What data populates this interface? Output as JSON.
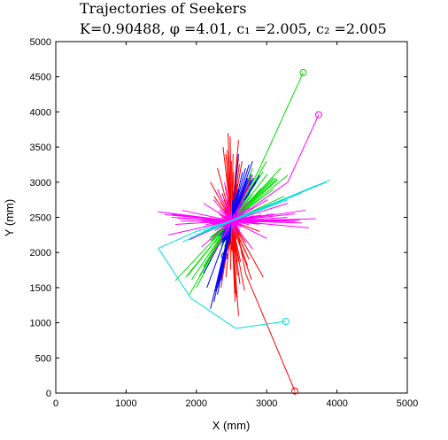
{
  "chart_data": {
    "type": "line",
    "title": "Trajectories of Seekers",
    "subtitle": "K=0.90488, φ =4.01, c₁ =2.005, c₂ =2.005",
    "xlabel": "X (mm)",
    "ylabel": "Y (mm)",
    "xlim": [
      0,
      5000
    ],
    "ylim": [
      0,
      5000
    ],
    "xticks": [
      "0",
      "1000",
      "2000",
      "3000",
      "4000",
      "5000"
    ],
    "yticks": [
      "0",
      "500",
      "1000",
      "1500",
      "2000",
      "2500",
      "3000",
      "3500",
      "4000",
      "4500",
      "5000"
    ],
    "grid": false,
    "legend": "none",
    "center": [
      2500,
      2450
    ],
    "series": [
      {
        "color": "#ff0000",
        "start": [
          3400,
          30
        ],
        "path": [
          [
            3400,
            30
          ],
          [
            2700,
            1700
          ],
          [
            2550,
            2500
          ],
          [
            2500,
            2450
          ]
        ],
        "swarm": [
          [
            2450,
            3700
          ],
          [
            2380,
            3500
          ],
          [
            2600,
            3600
          ],
          [
            2650,
            3300
          ],
          [
            2300,
            3200
          ],
          [
            2700,
            2000
          ],
          [
            2550,
            1300
          ],
          [
            2600,
            1100
          ],
          [
            2950,
            1650
          ],
          [
            2400,
            1800
          ],
          [
            2200,
            3000
          ],
          [
            2800,
            3100
          ],
          [
            2350,
            1500
          ],
          [
            2750,
            1900
          ],
          [
            2480,
            3650
          ],
          [
            2620,
            1550
          ],
          [
            2250,
            2800
          ],
          [
            2900,
            2300
          ],
          [
            2420,
            1650
          ],
          [
            2580,
            3400
          ]
        ]
      },
      {
        "color": "#00dd00",
        "start": [
          3520,
          4560
        ],
        "path": [
          [
            3520,
            4560
          ],
          [
            2900,
            3200
          ],
          [
            2600,
            2600
          ],
          [
            2500,
            2450
          ]
        ],
        "swarm": [
          [
            3200,
            3200
          ],
          [
            3300,
            3100
          ],
          [
            3000,
            3300
          ],
          [
            1700,
            1600
          ],
          [
            1900,
            1400
          ],
          [
            2100,
            1800
          ],
          [
            3100,
            2900
          ],
          [
            2800,
            3200
          ],
          [
            2200,
            2000
          ],
          [
            3250,
            2800
          ],
          [
            1850,
            1650
          ],
          [
            3150,
            3050
          ],
          [
            2000,
            1500
          ],
          [
            2950,
            3150
          ],
          [
            2300,
            1900
          ]
        ]
      },
      {
        "color": "#0000ff",
        "start": [
          2400,
          1950
        ],
        "path": [
          [
            2400,
            1950
          ],
          [
            2450,
            2200
          ],
          [
            2500,
            2450
          ]
        ],
        "swarm": [
          [
            2200,
            1200
          ],
          [
            2300,
            1400
          ],
          [
            2800,
            3300
          ],
          [
            2900,
            3100
          ],
          [
            2700,
            3200
          ],
          [
            2100,
            1700
          ],
          [
            2850,
            3000
          ],
          [
            2600,
            3400
          ],
          [
            2350,
            1600
          ],
          [
            2250,
            1300
          ],
          [
            2750,
            3250
          ],
          [
            2150,
            1500
          ]
        ]
      },
      {
        "color": "#ff00ff",
        "start": [
          3740,
          3960
        ],
        "path": [
          [
            3740,
            3960
          ],
          [
            3300,
            3000
          ],
          [
            2600,
            2500
          ],
          [
            2500,
            2450
          ]
        ],
        "swarm": [
          [
            1450,
            2580
          ],
          [
            1550,
            2540
          ],
          [
            1700,
            2400
          ],
          [
            3700,
            2480
          ],
          [
            3500,
            2420
          ],
          [
            3400,
            2550
          ],
          [
            2500,
            3300
          ],
          [
            2200,
            1900
          ],
          [
            1600,
            2250
          ],
          [
            3300,
            2700
          ],
          [
            1800,
            2600
          ],
          [
            3600,
            2350
          ],
          [
            2400,
            3000
          ],
          [
            2100,
            2700
          ],
          [
            3000,
            2200
          ],
          [
            1900,
            2450
          ],
          [
            3550,
            2600
          ],
          [
            2300,
            2900
          ],
          [
            2800,
            2050
          ],
          [
            1650,
            2500
          ]
        ]
      },
      {
        "color": "#00dddd",
        "start": [
          3270,
          1020
        ],
        "path": [
          [
            3270,
            1020
          ],
          [
            2560,
            920
          ],
          [
            1920,
            1350
          ],
          [
            1460,
            2060
          ],
          [
            2000,
            2300
          ],
          [
            2500,
            2450
          ],
          [
            3900,
            3030
          ]
        ],
        "swarm": [
          [
            1800,
            2150
          ],
          [
            3500,
            2850
          ],
          [
            3700,
            2950
          ],
          [
            2100,
            2300
          ],
          [
            1900,
            2200
          ],
          [
            3300,
            2750
          ],
          [
            2200,
            2350
          ],
          [
            3850,
            3000
          ],
          [
            2700,
            2550
          ],
          [
            2000,
            2250
          ]
        ]
      }
    ]
  }
}
